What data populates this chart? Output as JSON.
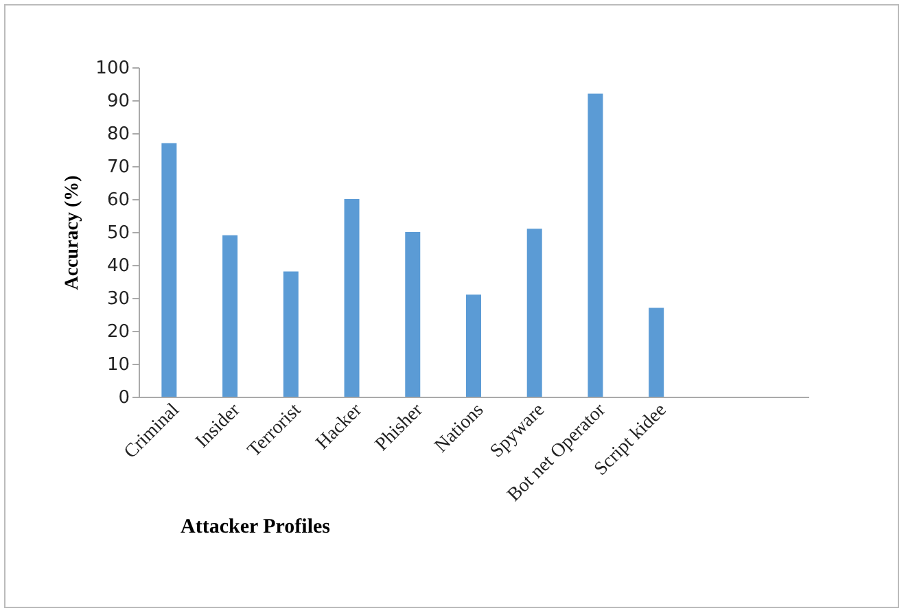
{
  "chart_data": {
    "type": "bar",
    "xlabel": "Attacker Profiles",
    "ylabel": "Accuracy (%)",
    "categories": [
      "Criminal",
      "Insider",
      "Terrorist",
      "Hacker",
      "Phisher",
      "Nations",
      "Spyware",
      "Bot net Operator",
      "Script kidee",
      null,
      null
    ],
    "values": [
      77,
      49,
      38,
      60,
      50,
      31,
      51,
      92,
      27,
      null,
      null
    ],
    "color": "#5b9bd5",
    "ylim": [
      0,
      100
    ],
    "yticks": [
      0,
      10,
      20,
      30,
      40,
      50,
      60,
      70,
      80,
      90,
      100
    ],
    "grid": false
  }
}
